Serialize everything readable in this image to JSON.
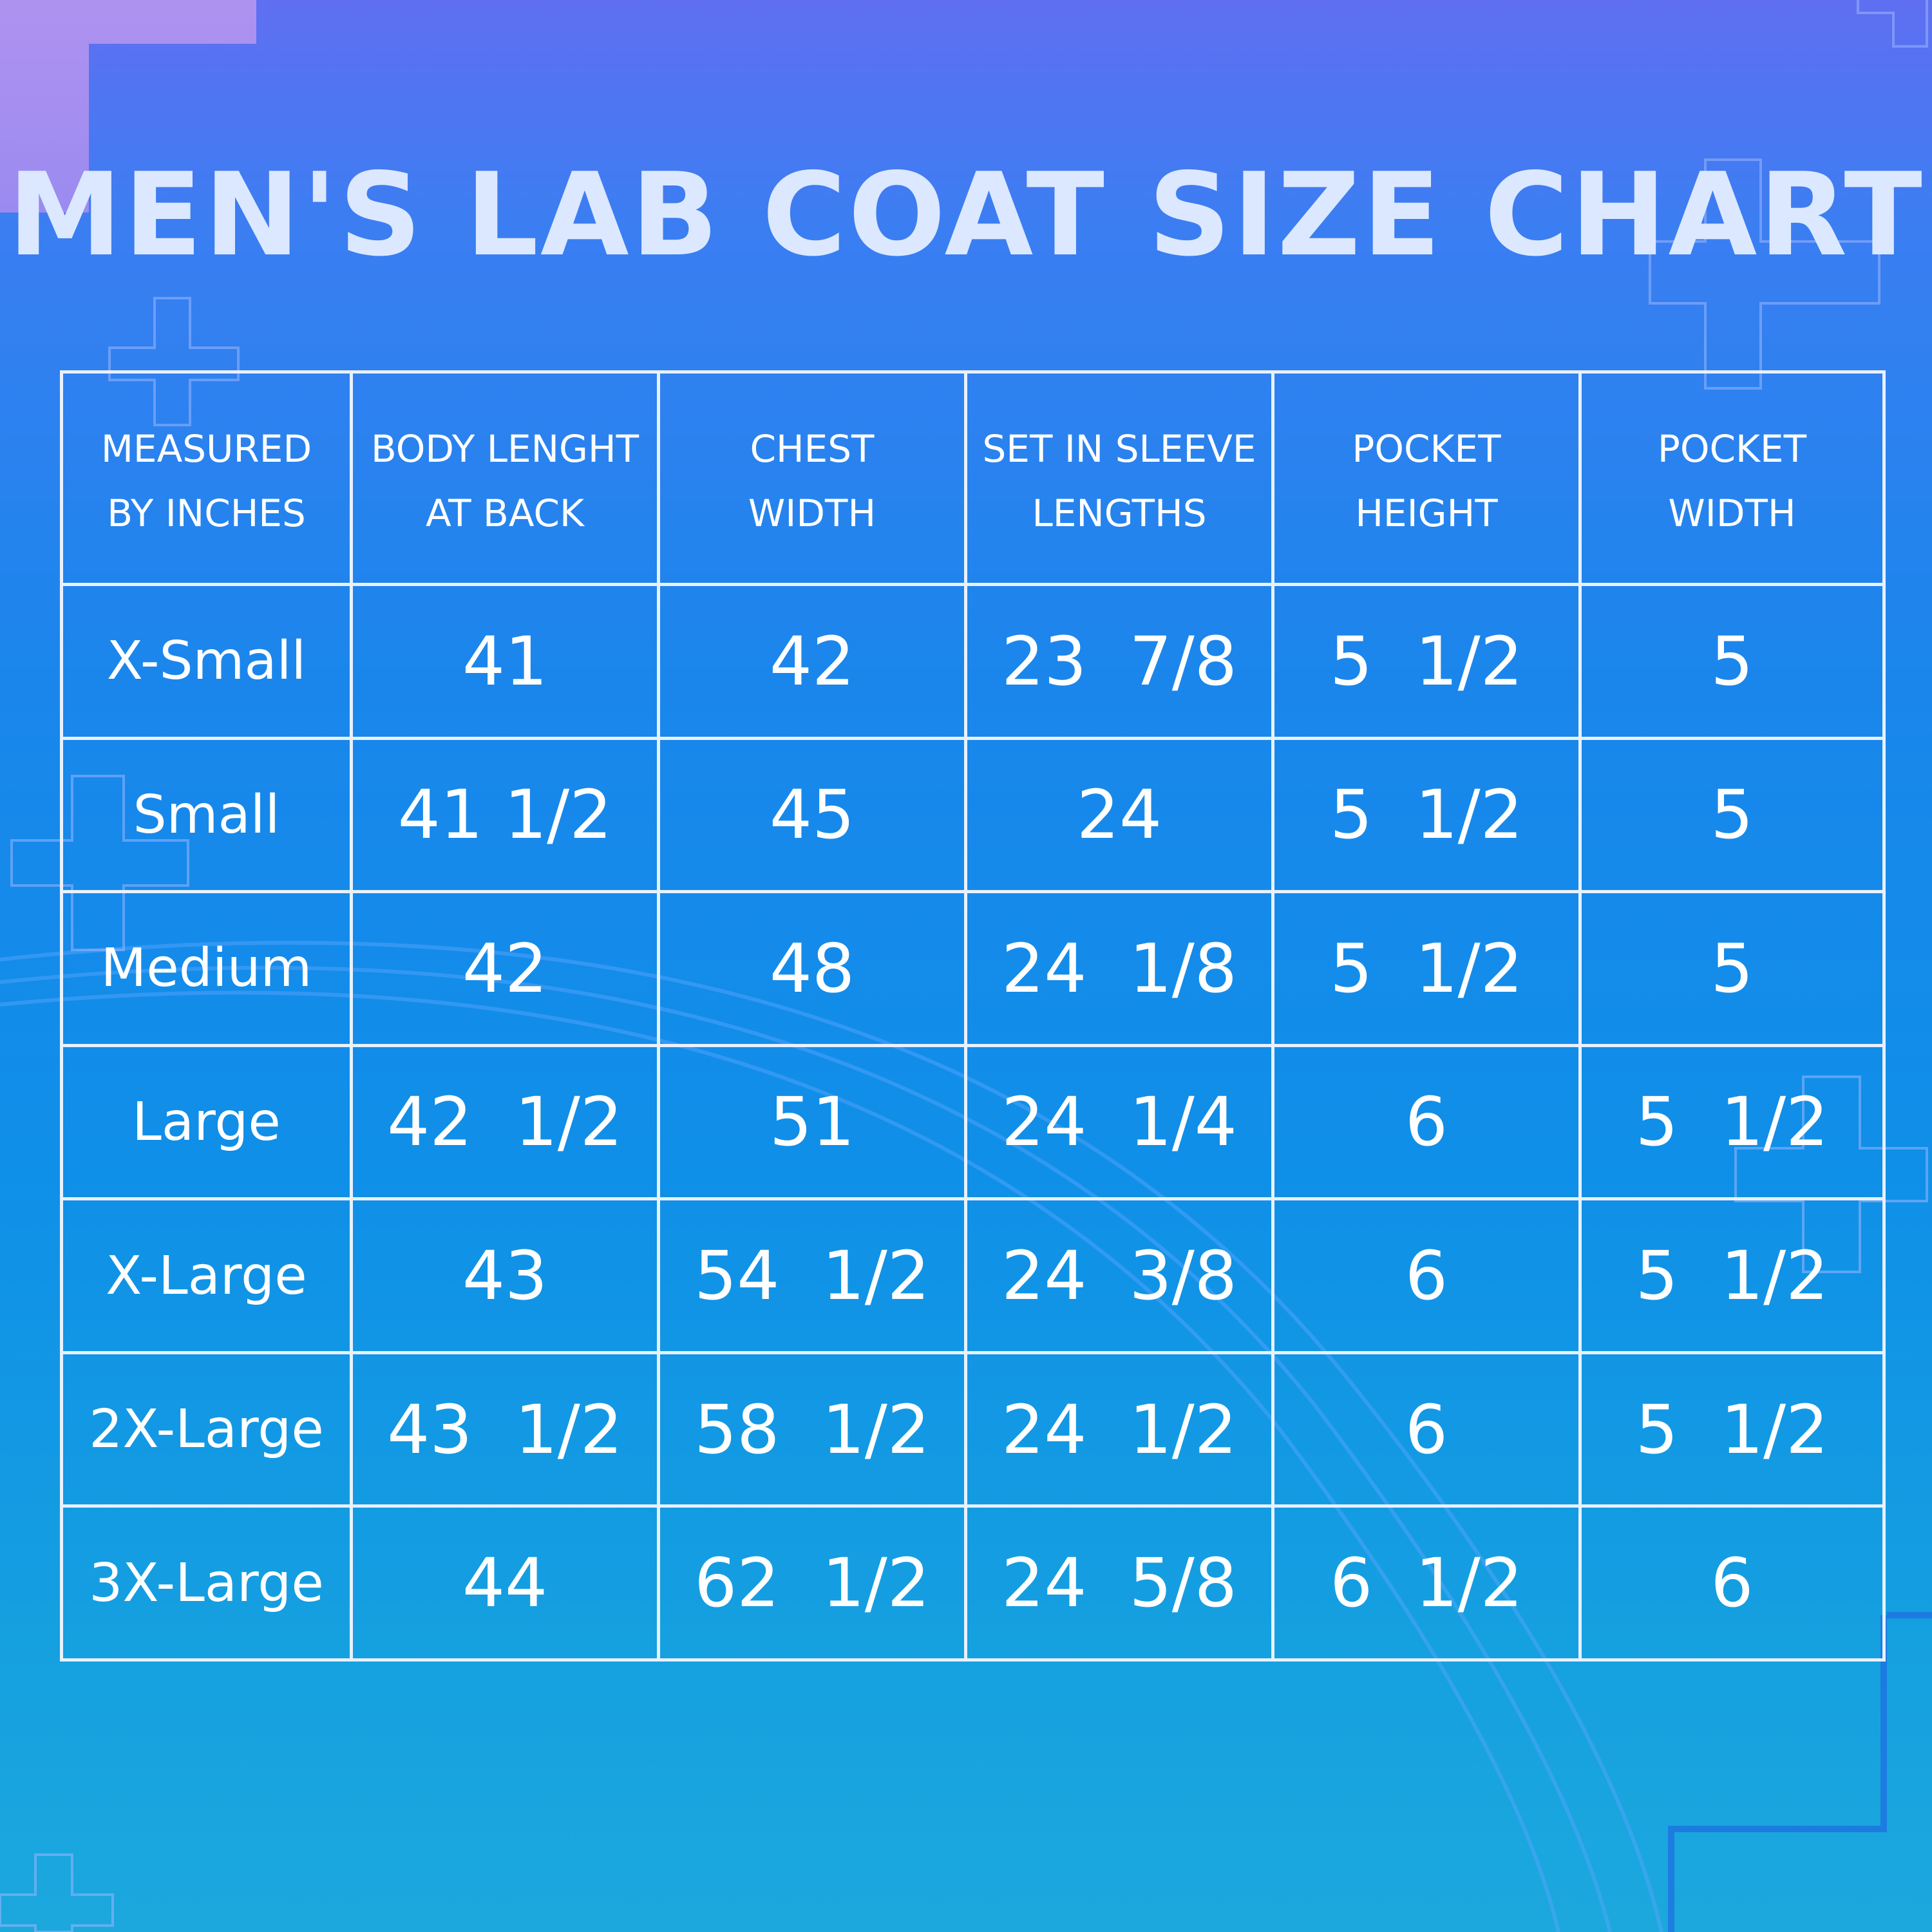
{
  "chart_data": {
    "type": "table",
    "title": "MEN'S LAB COAT SIZE CHART",
    "columns": [
      [
        "MEASURED",
        "BY INCHES"
      ],
      [
        "BODY LENGHT",
        "AT BACK"
      ],
      [
        "CHEST",
        "WIDTH"
      ],
      [
        "SET IN SLEEVE",
        "LENGTHS"
      ],
      [
        "POCKET",
        "HEIGHT"
      ],
      [
        "POCKET",
        "WIDTH"
      ]
    ],
    "rows": [
      [
        "X-Small",
        "41",
        "42",
        "23  7/8",
        "5  1/2",
        "5"
      ],
      [
        "Small",
        "41 1/2",
        "45",
        "24",
        "5  1/2",
        "5"
      ],
      [
        "Medium",
        "42",
        "48",
        "24  1/8",
        "5  1/2",
        "5"
      ],
      [
        "Large",
        "42  1/2",
        "51",
        "24  1/4",
        "6",
        "5  1/2"
      ],
      [
        "X-Large",
        "43",
        "54  1/2",
        "24  3/8",
        "6",
        "5  1/2"
      ],
      [
        "2X-Large",
        "43  1/2",
        "58  1/2",
        "24  1/2",
        "6",
        "5  1/2"
      ],
      [
        "3X-Large",
        "44",
        "62  1/2",
        "24  5/8",
        "6  1/2",
        "6"
      ]
    ]
  }
}
